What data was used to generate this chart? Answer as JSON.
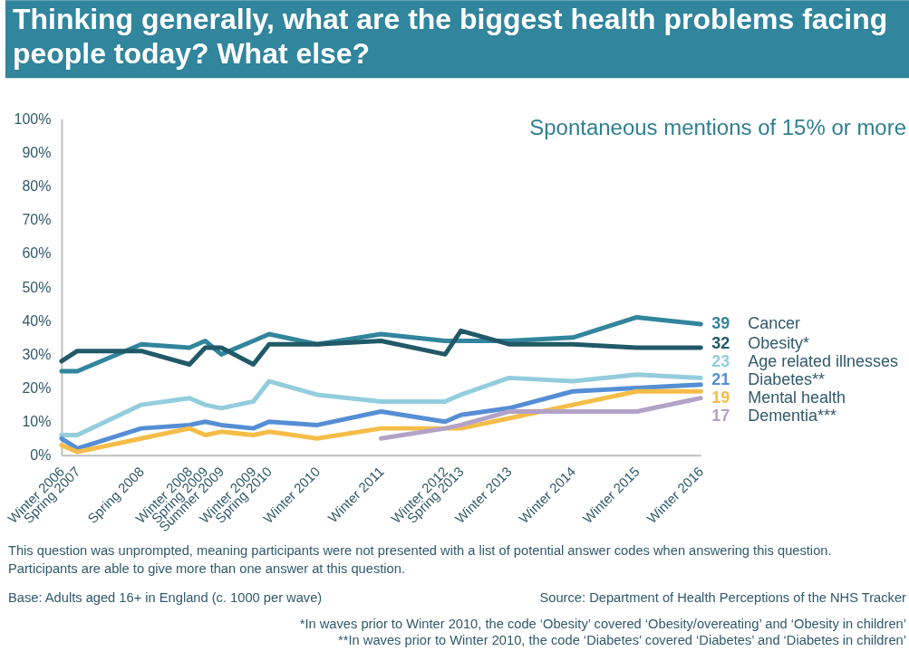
{
  "chart_data": {
    "type": "line",
    "title": "Thinking generally, what are the biggest health problems facing people today? What else?",
    "subtitle": "Spontaneous mentions of 15% or more",
    "x": [
      "2006-12",
      "2007-03",
      "2008-03",
      "2008-12",
      "2009-03",
      "2009-06",
      "2009-12",
      "2010-03",
      "2010-12",
      "2011-12",
      "2012-12",
      "2013-03",
      "2013-12",
      "2014-12",
      "2015-12",
      "2016-12"
    ],
    "xlim": [
      "2006-12",
      "2016-12"
    ],
    "xticks": [
      {
        "value": "2006-12",
        "label": "Winter 2006"
      },
      {
        "value": "2007-03",
        "label": "Spring 2007"
      },
      {
        "value": "2008-03",
        "label": "Spring 2008"
      },
      {
        "value": "2008-12",
        "label": "Winter 2008"
      },
      {
        "value": "2009-03",
        "label": "Spring 2009"
      },
      {
        "value": "2009-06",
        "label": "Summer 2009"
      },
      {
        "value": "2009-12",
        "label": "Winter 2009"
      },
      {
        "value": "2010-03",
        "label": "Spring 2010"
      },
      {
        "value": "2010-12",
        "label": "Winter 2010"
      },
      {
        "value": "2011-12",
        "label": "Winter 2011"
      },
      {
        "value": "2012-12",
        "label": "Winter 2012"
      },
      {
        "value": "2013-03",
        "label": "Spring 2013"
      },
      {
        "value": "2013-12",
        "label": "Winter 2013"
      },
      {
        "value": "2014-12",
        "label": "Winter 2014"
      },
      {
        "value": "2015-12",
        "label": "Winter 2015"
      },
      {
        "value": "2016-12",
        "label": "Winter 2016"
      }
    ],
    "ylim": [
      0,
      100
    ],
    "yticks": [
      {
        "value": 0,
        "label": "0%"
      },
      {
        "value": 10,
        "label": "10%"
      },
      {
        "value": 20,
        "label": "20%"
      },
      {
        "value": 30,
        "label": "30%"
      },
      {
        "value": 40,
        "label": "40%"
      },
      {
        "value": 50,
        "label": "50%"
      },
      {
        "value": 60,
        "label": "60%"
      },
      {
        "value": 70,
        "label": "70%"
      },
      {
        "value": 80,
        "label": "80%"
      },
      {
        "value": 90,
        "label": "90%"
      },
      {
        "value": 100,
        "label": "100%"
      }
    ],
    "series": [
      {
        "name": "Cancer",
        "color": "#31859c",
        "values": [
          25,
          25,
          33,
          32,
          34,
          30,
          34,
          36,
          33,
          36,
          34,
          34,
          34,
          35,
          41,
          39
        ],
        "value_labels": [
          null,
          null,
          null,
          null,
          null,
          null,
          null,
          null,
          null,
          null,
          null,
          null,
          null,
          null,
          null,
          "39"
        ]
      },
      {
        "name": "Obesity*",
        "color": "#215968",
        "values": [
          28,
          31,
          31,
          27,
          32,
          32,
          27,
          33,
          33,
          34,
          30,
          37,
          33,
          33,
          32,
          32
        ],
        "value_labels": [
          null,
          null,
          null,
          null,
          null,
          null,
          null,
          null,
          null,
          null,
          null,
          null,
          null,
          null,
          null,
          "32"
        ]
      },
      {
        "name": "Age related illnesses",
        "color": "#93cddd",
        "values": [
          6,
          6,
          15,
          17,
          15,
          14,
          16,
          22,
          18,
          16,
          16,
          18,
          23,
          22,
          24,
          23
        ],
        "value_labels": [
          null,
          null,
          null,
          null,
          null,
          null,
          null,
          null,
          null,
          null,
          null,
          null,
          null,
          null,
          null,
          "23"
        ]
      },
      {
        "name": "Diabetes**",
        "color": "#558ed5",
        "values": [
          5,
          2,
          8,
          9,
          10,
          9,
          8,
          10,
          9,
          13,
          10,
          12,
          14,
          19,
          20,
          21
        ],
        "value_labels": [
          null,
          null,
          null,
          null,
          null,
          null,
          null,
          null,
          null,
          null,
          null,
          null,
          null,
          null,
          null,
          "21"
        ]
      },
      {
        "name": "Mental health",
        "color": "#f5bd47",
        "values": [
          3,
          1,
          5,
          8,
          6,
          7,
          6,
          7,
          5,
          8,
          8,
          8,
          11,
          15,
          19,
          19
        ],
        "value_labels": [
          null,
          null,
          null,
          null,
          null,
          null,
          null,
          null,
          null,
          null,
          null,
          null,
          null,
          null,
          null,
          "19"
        ]
      },
      {
        "name": "Dementia***",
        "color": "#b3a2c7",
        "values": [
          null,
          null,
          null,
          null,
          null,
          null,
          null,
          null,
          null,
          5,
          8,
          9,
          13,
          13,
          13,
          17
        ],
        "value_labels": [
          null,
          null,
          null,
          null,
          null,
          null,
          null,
          null,
          null,
          null,
          null,
          null,
          null,
          null,
          null,
          "17"
        ]
      }
    ],
    "annotations": [
      "This question was unprompted, meaning participants were not presented with a list of potential answer codes when answering this question.",
      "Participants are able to give more than one answer at this question.",
      "Base: Adults aged 16+ in England (c. 1000 per wave)",
      "Source: Department of Health Perceptions of the NHS Tracker",
      "*In waves prior to Winter 2010, the code ‘Obesity’ covered ‘Obesity/overeating’ and ‘Obesity in children’",
      "**In waves prior to Winter 2010, the code ‘Diabetes’ covered ‘Diabetes’ and ‘Diabetes in children’"
    ]
  }
}
